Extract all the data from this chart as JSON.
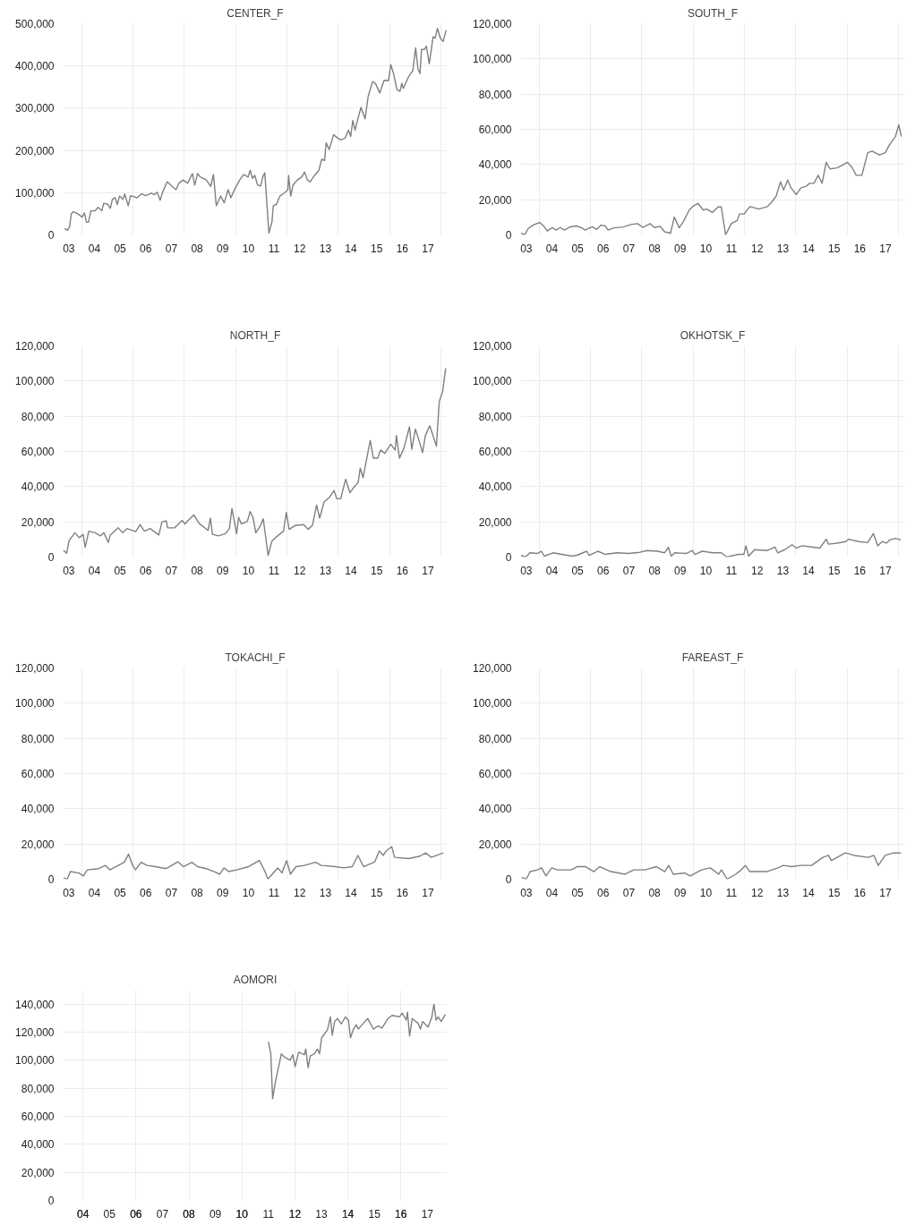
{
  "chart_data": [
    {
      "type": "line",
      "title": "CENTER_F",
      "xlim": [
        2.78,
        17.75
      ],
      "ylim": [
        0,
        500000
      ],
      "grid": true,
      "xticks": [
        {
          "value": 3,
          "label": "03"
        },
        {
          "value": 4,
          "label": "04"
        },
        {
          "value": 5,
          "label": "05"
        },
        {
          "value": 6,
          "label": "06"
        },
        {
          "value": 7,
          "label": "07"
        },
        {
          "value": 8,
          "label": "08"
        },
        {
          "value": 9,
          "label": "09"
        },
        10,
        11,
        12,
        13,
        14,
        15,
        16,
        17,
        {
          "value": 3.5,
          "label": null
        },
        {
          "value": 5.5,
          "label": null
        },
        {
          "value": 7.5,
          "label": null
        },
        {
          "value": 9.5,
          "label": null
        },
        {
          "value": 11.5,
          "label": null
        },
        {
          "value": 13.5,
          "label": null
        },
        {
          "value": 15.5,
          "label": null
        },
        {
          "value": 17.5,
          "label": null
        }
      ],
      "yticks": [
        {
          "value": 0,
          "label": "0"
        },
        {
          "value": 100000,
          "label": "100,000"
        },
        {
          "value": 200000,
          "label": "200,000"
        },
        {
          "value": 300000,
          "label": "300,000"
        },
        {
          "value": 400000,
          "label": "400,000"
        },
        {
          "value": 500000,
          "label": "500,000"
        }
      ],
      "series": [
        {
          "color": "#808080",
          "x": [
            2.84,
            2.95,
            3.03,
            3.1,
            3.18,
            3.35,
            3.52,
            3.61,
            3.69,
            3.77,
            3.86,
            4.03,
            4.14,
            4.29,
            4.36,
            4.53,
            4.62,
            4.7,
            4.81,
            4.89,
            4.98,
            5.11,
            5.18,
            5.32,
            5.41,
            5.66,
            5.83,
            6.0,
            6.22,
            6.33,
            6.45,
            6.56,
            6.67,
            6.84,
            7.01,
            7.18,
            7.29,
            7.46,
            7.63,
            7.82,
            7.91,
            8.02,
            8.13,
            8.36,
            8.53,
            8.64,
            8.75,
            8.92,
            9.06,
            9.21,
            9.32,
            9.49,
            9.66,
            9.82,
            9.99,
            10.07,
            10.16,
            10.25,
            10.36,
            10.48,
            10.56,
            10.64,
            10.8,
            10.92,
            10.97,
            11.09,
            11.23,
            11.4,
            11.54,
            11.57,
            11.65,
            11.74,
            11.91,
            12.08,
            12.19,
            12.3,
            12.41,
            12.58,
            12.75,
            12.86,
            12.97,
            13.03,
            13.15,
            13.32,
            13.49,
            13.6,
            13.77,
            13.9,
            13.99,
            14.07,
            14.16,
            14.27,
            14.39,
            14.55,
            14.67,
            14.84,
            14.95,
            15.12,
            15.29,
            15.46,
            15.55,
            15.66,
            15.79,
            15.91,
            15.98,
            16.04,
            16.24,
            16.41,
            16.52,
            16.61,
            16.69,
            16.75,
            16.86,
            16.94,
            17.05,
            17.2,
            17.28,
            17.37,
            17.48,
            17.59,
            17.71
          ],
          "values": [
            15000,
            11000,
            19000,
            50000,
            55000,
            50000,
            42000,
            52000,
            30000,
            30000,
            57000,
            57000,
            65000,
            57000,
            75000,
            72000,
            63000,
            84000,
            88000,
            72000,
            92000,
            84000,
            97000,
            69000,
            93000,
            88000,
            97000,
            93000,
            99000,
            95000,
            101000,
            82000,
            103000,
            126000,
            116000,
            107000,
            122000,
            130000,
            122000,
            145000,
            118000,
            145000,
            137000,
            130000,
            115000,
            143000,
            69000,
            92000,
            76000,
            107000,
            88000,
            111000,
            130000,
            143000,
            137000,
            153000,
            134000,
            141000,
            118000,
            116000,
            137000,
            147000,
            4000,
            31000,
            69000,
            72000,
            92000,
            99000,
            107000,
            141000,
            92000,
            118000,
            130000,
            137000,
            149000,
            130000,
            126000,
            141000,
            153000,
            179000,
            176000,
            218000,
            202000,
            237000,
            229000,
            225000,
            229000,
            248000,
            233000,
            271000,
            248000,
            275000,
            302000,
            275000,
            328000,
            363000,
            359000,
            336000,
            366000,
            365000,
            403000,
            382000,
            344000,
            340000,
            359000,
            347000,
            374000,
            389000,
            443000,
            393000,
            382000,
            439000,
            439000,
            447000,
            405000,
            469000,
            466000,
            489000,
            466000,
            458000,
            485000
          ]
        }
      ]
    },
    {
      "type": "line",
      "title": "SOUTH_F",
      "xlim": [
        2.78,
        17.75
      ],
      "ylim": [
        0,
        120000
      ],
      "grid": true,
      "xticks": [
        {
          "value": 3,
          "label": "03"
        },
        {
          "value": 4,
          "label": "04"
        },
        {
          "value": 5,
          "label": "05"
        },
        {
          "value": 6,
          "label": "06"
        },
        {
          "value": 7,
          "label": "07"
        },
        {
          "value": 8,
          "label": "08"
        },
        {
          "value": 9,
          "label": "09"
        },
        10,
        11,
        12,
        13,
        14,
        15,
        16,
        17,
        {
          "value": 3.5,
          "label": null
        },
        {
          "value": 5.5,
          "label": null
        },
        {
          "value": 7.5,
          "label": null
        },
        {
          "value": 9.5,
          "label": null
        },
        {
          "value": 11.5,
          "label": null
        },
        {
          "value": 13.5,
          "label": null
        },
        {
          "value": 15.5,
          "label": null
        },
        {
          "value": 17.5,
          "label": null
        }
      ],
      "yticks": [
        {
          "value": 0,
          "label": "0"
        },
        {
          "value": 20000,
          "label": "20,000"
        },
        {
          "value": 40000,
          "label": "40,000"
        },
        {
          "value": 60000,
          "label": "60,000"
        },
        {
          "value": 80000,
          "label": "80,000"
        },
        {
          "value": 100000,
          "label": "100,000"
        },
        {
          "value": 120000,
          "label": "120,000"
        }
      ],
      "series": [
        {
          "color": "#808080",
          "x": [
            2.8,
            2.94,
            3.08,
            3.31,
            3.53,
            3.65,
            3.82,
            4.02,
            4.16,
            4.32,
            4.49,
            4.72,
            4.95,
            5.17,
            5.29,
            5.57,
            5.74,
            5.91,
            6.08,
            6.19,
            6.42,
            6.75,
            7.09,
            7.34,
            7.55,
            7.83,
            8.0,
            8.22,
            8.39,
            8.62,
            8.77,
            8.96,
            9.13,
            9.35,
            9.52,
            9.69,
            9.9,
            10.03,
            10.26,
            10.48,
            10.6,
            10.77,
            10.99,
            11.22,
            11.31,
            11.5,
            11.61,
            11.73,
            12.06,
            12.4,
            12.57,
            12.74,
            12.91,
            13.03,
            13.19,
            13.31,
            13.53,
            13.7,
            13.93,
            14.04,
            14.21,
            14.38,
            14.53,
            14.69,
            14.84,
            15.12,
            15.52,
            15.69,
            15.86,
            16.08,
            16.31,
            16.48,
            16.76,
            16.99,
            17.16,
            17.39,
            17.52,
            17.62
          ],
          "values": [
            900,
            0,
            3700,
            5900,
            7000,
            5500,
            2200,
            4200,
            2700,
            4200,
            2700,
            4600,
            5100,
            4000,
            2700,
            4600,
            3100,
            5500,
            5100,
            2700,
            4000,
            4400,
            5900,
            6400,
            4200,
            6400,
            4200,
            4900,
            1800,
            900,
            10100,
            4000,
            7700,
            14100,
            16500,
            17900,
            14100,
            14700,
            12800,
            15900,
            15900,
            0,
            6400,
            8200,
            11900,
            11900,
            14300,
            16100,
            14700,
            16100,
            18700,
            22000,
            30200,
            25600,
            31100,
            26900,
            22900,
            26600,
            27800,
            29300,
            29300,
            33900,
            29300,
            41200,
            37500,
            38100,
            41200,
            38500,
            33900,
            33900,
            46700,
            47600,
            45400,
            46700,
            51300,
            55900,
            62600,
            55900
          ]
        }
      ]
    },
    {
      "type": "line",
      "title": "NORTH_F",
      "xlim": [
        2.78,
        17.75
      ],
      "ylim": [
        0,
        120000
      ],
      "grid": true,
      "xticks": [
        {
          "value": 3,
          "label": "03"
        },
        {
          "value": 4,
          "label": "04"
        },
        {
          "value": 5,
          "label": "05"
        },
        {
          "value": 6,
          "label": "06"
        },
        {
          "value": 7,
          "label": "07"
        },
        {
          "value": 8,
          "label": "08"
        },
        {
          "value": 9,
          "label": "09"
        },
        10,
        11,
        12,
        13,
        14,
        15,
        16,
        17,
        {
          "value": 3.5,
          "label": null
        },
        {
          "value": 5.5,
          "label": null
        },
        {
          "value": 7.5,
          "label": null
        },
        {
          "value": 9.5,
          "label": null
        },
        {
          "value": 11.5,
          "label": null
        },
        {
          "value": 13.5,
          "label": null
        },
        {
          "value": 15.5,
          "label": null
        },
        {
          "value": 17.5,
          "label": null
        }
      ],
      "yticks": [
        {
          "value": 0,
          "label": "0"
        },
        {
          "value": 20000,
          "label": "20,000"
        },
        {
          "value": 40000,
          "label": "40,000"
        },
        {
          "value": 60000,
          "label": "60,000"
        },
        {
          "value": 80000,
          "label": "80,000"
        },
        {
          "value": 100000,
          "label": "100,000"
        },
        {
          "value": 120000,
          "label": "120,000"
        }
      ],
      "series": [
        {
          "color": "#808080",
          "x": [
            2.79,
            2.92,
            3.01,
            3.24,
            3.41,
            3.56,
            3.64,
            3.78,
            4.03,
            4.23,
            4.37,
            4.54,
            4.62,
            4.93,
            5.1,
            5.27,
            5.61,
            5.78,
            5.95,
            6.17,
            6.51,
            6.63,
            6.8,
            6.85,
            7.13,
            7.42,
            7.53,
            7.64,
            7.87,
            8.09,
            8.43,
            8.52,
            8.6,
            8.83,
            9.11,
            9.26,
            9.36,
            9.54,
            9.62,
            9.73,
            9.96,
            10.07,
            10.18,
            10.29,
            10.46,
            10.58,
            10.77,
            10.92,
            11.14,
            11.37,
            11.48,
            11.59,
            11.82,
            12.16,
            12.33,
            12.5,
            12.66,
            12.78,
            12.95,
            13.17,
            13.34,
            13.45,
            13.6,
            13.79,
            13.96,
            14.08,
            14.28,
            14.36,
            14.47,
            14.75,
            14.87,
            15.04,
            15.15,
            15.32,
            15.55,
            15.72,
            15.77,
            15.89,
            16.06,
            16.28,
            16.37,
            16.51,
            16.67,
            16.79,
            16.9,
            17.07,
            17.33,
            17.44,
            17.57,
            17.69
          ],
          "values": [
            3700,
            2200,
            9200,
            13800,
            11000,
            12900,
            5500,
            14700,
            13800,
            12000,
            13800,
            8300,
            12500,
            16600,
            13800,
            16200,
            14400,
            18400,
            14700,
            16200,
            12500,
            19900,
            20600,
            16600,
            16600,
            20800,
            18800,
            20600,
            23900,
            19000,
            15100,
            22100,
            12900,
            12000,
            13300,
            16200,
            27600,
            13300,
            22500,
            18800,
            20300,
            25800,
            22500,
            13800,
            17500,
            21700,
            900,
            9200,
            12000,
            14700,
            25400,
            15700,
            17900,
            18400,
            15700,
            18100,
            29500,
            22100,
            31300,
            34100,
            37800,
            33100,
            33100,
            44200,
            36500,
            39000,
            42400,
            50600,
            45100,
            66300,
            56200,
            56200,
            60800,
            58900,
            64100,
            60800,
            69100,
            56200,
            61700,
            74000,
            61200,
            72700,
            65400,
            59300,
            69100,
            74600,
            63000,
            88400,
            93900,
            107200
          ]
        }
      ]
    },
    {
      "type": "line",
      "title": "OKHOTSK_F",
      "xlim": [
        2.78,
        17.75
      ],
      "ylim": [
        0,
        120000
      ],
      "grid": true,
      "xticks": [
        {
          "value": 3,
          "label": "03"
        },
        {
          "value": 4,
          "label": "04"
        },
        {
          "value": 5,
          "label": "05"
        },
        {
          "value": 6,
          "label": "06"
        },
        {
          "value": 7,
          "label": "07"
        },
        {
          "value": 8,
          "label": "08"
        },
        {
          "value": 9,
          "label": "09"
        },
        10,
        11,
        12,
        13,
        14,
        15,
        16,
        17,
        {
          "value": 3.5,
          "label": null
        },
        {
          "value": 5.5,
          "label": null
        },
        {
          "value": 7.5,
          "label": null
        },
        {
          "value": 9.5,
          "label": null
        },
        {
          "value": 11.5,
          "label": null
        },
        {
          "value": 13.5,
          "label": null
        },
        {
          "value": 15.5,
          "label": null
        },
        {
          "value": 17.5,
          "label": null
        }
      ],
      "yticks": [
        {
          "value": 0,
          "label": "0"
        },
        {
          "value": 20000,
          "label": "20,000"
        },
        {
          "value": 40000,
          "label": "40,000"
        },
        {
          "value": 60000,
          "label": "60,000"
        },
        {
          "value": 80000,
          "label": "80,000"
        },
        {
          "value": 100000,
          "label": "100,000"
        },
        {
          "value": 120000,
          "label": "120,000"
        }
      ],
      "series": [
        {
          "color": "#808080",
          "x": [
            2.8,
            2.97,
            3.14,
            3.42,
            3.59,
            3.7,
            4.04,
            4.38,
            4.78,
            4.95,
            5.36,
            5.45,
            5.79,
            6.08,
            6.53,
            6.98,
            7.43,
            7.71,
            8.11,
            8.39,
            8.54,
            8.65,
            8.79,
            9.24,
            9.47,
            9.58,
            9.86,
            10.26,
            10.6,
            10.82,
            11.27,
            11.48,
            11.56,
            11.67,
            11.9,
            12.4,
            12.69,
            12.8,
            13.08,
            13.36,
            13.53,
            13.76,
            14.1,
            14.44,
            14.69,
            14.78,
            15.12,
            15.45,
            15.57,
            15.96,
            16.3,
            16.45,
            16.53,
            16.7,
            16.87,
            17.04,
            17.16,
            17.39,
            17.6
          ],
          "values": [
            900,
            0,
            2400,
            2000,
            3300,
            500,
            2400,
            1500,
            500,
            900,
            3300,
            900,
            3300,
            1500,
            2400,
            2000,
            2700,
            3700,
            3300,
            2400,
            5500,
            500,
            2400,
            2000,
            3700,
            1500,
            3300,
            2400,
            2400,
            0,
            1500,
            1500,
            6400,
            500,
            4200,
            3700,
            5700,
            2400,
            4200,
            7000,
            5100,
            6400,
            5700,
            5100,
            10100,
            7300,
            7900,
            8800,
            10100,
            8800,
            8200,
            11500,
            13400,
            6400,
            8800,
            7900,
            9700,
            10600,
            9700
          ]
        }
      ]
    },
    {
      "type": "line",
      "title": "TOKACHI_F",
      "xlim": [
        2.78,
        17.75
      ],
      "ylim": [
        0,
        120000
      ],
      "grid": true,
      "xticks": [
        {
          "value": 3,
          "label": "03"
        },
        {
          "value": 4,
          "label": "04"
        },
        {
          "value": 5,
          "label": "05"
        },
        {
          "value": 6,
          "label": "06"
        },
        {
          "value": 7,
          "label": "07"
        },
        {
          "value": 8,
          "label": "08"
        },
        {
          "value": 9,
          "label": "09"
        },
        10,
        11,
        12,
        13,
        14,
        15,
        16,
        17,
        {
          "value": 3.5,
          "label": null
        },
        {
          "value": 5.5,
          "label": null
        },
        {
          "value": 7.5,
          "label": null
        },
        {
          "value": 9.5,
          "label": null
        },
        {
          "value": 11.5,
          "label": null
        },
        {
          "value": 13.5,
          "label": null
        },
        {
          "value": 15.5,
          "label": null
        },
        {
          "value": 17.5,
          "label": null
        }
      ],
      "yticks": [
        {
          "value": 0,
          "label": "0"
        },
        {
          "value": 20000,
          "label": "20,000"
        },
        {
          "value": 40000,
          "label": "40,000"
        },
        {
          "value": 60000,
          "label": "60,000"
        },
        {
          "value": 80000,
          "label": "80,000"
        },
        {
          "value": 100000,
          "label": "100,000"
        },
        {
          "value": 120000,
          "label": "120,000"
        }
      ],
      "series": [
        {
          "color": "#808080",
          "x": [
            2.8,
            2.94,
            3.06,
            3.39,
            3.57,
            3.72,
            4.17,
            4.43,
            4.6,
            4.93,
            5.16,
            5.33,
            5.49,
            5.6,
            5.82,
            6.05,
            6.37,
            6.8,
            7.25,
            7.47,
            7.8,
            8.02,
            8.35,
            8.67,
            8.89,
            9.05,
            9.23,
            9.55,
            10.0,
            10.43,
            10.65,
            10.76,
            11.02,
            11.15,
            11.31,
            11.49,
            11.64,
            11.86,
            12.19,
            12.62,
            12.84,
            13.39,
            13.72,
            14.05,
            14.27,
            14.49,
            14.93,
            15.1,
            15.26,
            15.37,
            15.59,
            15.7,
            16.25,
            16.69,
            16.91,
            17.13,
            17.6
          ],
          "values": [
            700,
            0,
            4300,
            3500,
            1800,
            5300,
            6000,
            7800,
            5300,
            7800,
            9600,
            14200,
            7800,
            5300,
            9600,
            7800,
            7100,
            6000,
            9900,
            7100,
            9600,
            7100,
            6000,
            4300,
            2800,
            6400,
            4300,
            5300,
            7100,
            10600,
            4300,
            0,
            4300,
            6400,
            3500,
            10600,
            2800,
            7100,
            7800,
            9600,
            7800,
            7100,
            6400,
            7100,
            13500,
            7100,
            9900,
            16000,
            13500,
            16000,
            18400,
            12400,
            11700,
            13100,
            14900,
            12400,
            14900
          ]
        }
      ]
    },
    {
      "type": "line",
      "title": "FAREAST_F",
      "xlim": [
        2.78,
        17.75
      ],
      "ylim": [
        0,
        120000
      ],
      "grid": true,
      "xticks": [
        {
          "value": 3,
          "label": "03"
        },
        {
          "value": 4,
          "label": "04"
        },
        {
          "value": 5,
          "label": "05"
        },
        {
          "value": 6,
          "label": "06"
        },
        {
          "value": 7,
          "label": "07"
        },
        {
          "value": 8,
          "label": "08"
        },
        {
          "value": 9,
          "label": "09"
        },
        10,
        11,
        12,
        13,
        14,
        15,
        16,
        17,
        {
          "value": 3.5,
          "label": null
        },
        {
          "value": 5.5,
          "label": null
        },
        {
          "value": 7.5,
          "label": null
        },
        {
          "value": 9.5,
          "label": null
        },
        {
          "value": 11.5,
          "label": null
        },
        {
          "value": 13.5,
          "label": null
        },
        {
          "value": 15.5,
          "label": null
        },
        {
          "value": 17.5,
          "label": null
        }
      ],
      "yticks": [
        {
          "value": 0,
          "label": "0"
        },
        {
          "value": 20000,
          "label": "20,000"
        },
        {
          "value": 40000,
          "label": "40,000"
        },
        {
          "value": 60000,
          "label": "60,000"
        },
        {
          "value": 80000,
          "label": "80,000"
        },
        {
          "value": 100000,
          "label": "100,000"
        },
        {
          "value": 120000,
          "label": "120,000"
        }
      ],
      "series": [
        {
          "color": "#808080",
          "x": [
            2.82,
            3.0,
            3.15,
            3.44,
            3.59,
            3.77,
            3.99,
            4.21,
            4.76,
            4.98,
            5.31,
            5.64,
            5.86,
            6.3,
            6.85,
            7.19,
            7.63,
            8.07,
            8.4,
            8.55,
            8.73,
            9.17,
            9.39,
            9.83,
            10.17,
            10.5,
            10.61,
            10.83,
            11.16,
            11.38,
            11.54,
            11.71,
            12.37,
            12.81,
            13.02,
            13.35,
            13.68,
            14.12,
            14.56,
            14.78,
            14.89,
            15.44,
            15.78,
            16.33,
            16.55,
            16.72,
            16.99,
            17.32,
            17.6
          ],
          "values": [
            1000,
            0,
            4300,
            5300,
            6400,
            1800,
            6400,
            5300,
            5300,
            7100,
            7100,
            4300,
            7100,
            4300,
            2800,
            5300,
            5300,
            7100,
            4300,
            7800,
            2800,
            3500,
            1800,
            5300,
            6400,
            2800,
            5300,
            0,
            2800,
            5300,
            7800,
            4300,
            4300,
            6400,
            7800,
            7100,
            7800,
            7800,
            12400,
            13500,
            10600,
            14900,
            13500,
            12400,
            13500,
            7800,
            13500,
            14900,
            14900
          ]
        }
      ]
    },
    {
      "type": "line",
      "title": "AOMORI",
      "xlim": [
        3.25,
        17.75
      ],
      "ylim": [
        0,
        150000
      ],
      "grid": true,
      "xticks": [
        {
          "value": 4,
          "label": "04"
        },
        {
          "value": 5,
          "label": "05"
        },
        {
          "value": 6,
          "label": "06"
        },
        {
          "value": 7,
          "label": "07"
        },
        {
          "value": 8,
          "label": "08"
        },
        {
          "value": 9,
          "label": "09"
        },
        10,
        11,
        12,
        13,
        14,
        15,
        16,
        17,
        {
          "value": 4,
          "label": null
        },
        {
          "value": 6,
          "label": null
        },
        {
          "value": 8,
          "label": null
        },
        {
          "value": 10,
          "label": null
        },
        {
          "value": 12,
          "label": null
        },
        {
          "value": 14,
          "label": null
        },
        {
          "value": 16,
          "label": null
        }
      ],
      "yticks": [
        {
          "value": 0,
          "label": "0"
        },
        {
          "value": 20000,
          "label": "20,000"
        },
        {
          "value": 40000,
          "label": "40,000"
        },
        {
          "value": 60000,
          "label": "60,000"
        },
        {
          "value": 80000,
          "label": "80,000"
        },
        {
          "value": 100000,
          "label": "100,000"
        },
        {
          "value": 120000,
          "label": "120,000"
        },
        {
          "value": 140000,
          "label": "140,000"
        }
      ],
      "series": [
        {
          "color": "#808080",
          "x": [
            11.0,
            11.09,
            11.16,
            11.27,
            11.49,
            11.6,
            11.82,
            11.92,
            12.01,
            12.14,
            12.36,
            12.41,
            12.5,
            12.58,
            12.74,
            12.85,
            12.93,
            13.01,
            13.23,
            13.34,
            13.41,
            13.5,
            13.61,
            13.75,
            13.91,
            14.02,
            14.1,
            14.21,
            14.32,
            14.39,
            14.53,
            14.75,
            14.97,
            15.13,
            15.29,
            15.51,
            15.67,
            15.95,
            16.05,
            16.2,
            16.25,
            16.33,
            16.43,
            16.65,
            16.74,
            16.82,
            17.03,
            17.17,
            17.25,
            17.33,
            17.41,
            17.52,
            17.68
          ],
          "values": [
            113000,
            104600,
            72500,
            85100,
            104600,
            102300,
            100000,
            103900,
            95400,
            105700,
            103900,
            108000,
            94700,
            103000,
            104600,
            108000,
            104600,
            116000,
            121700,
            130900,
            117800,
            127600,
            129700,
            125900,
            130900,
            128600,
            116000,
            122200,
            125200,
            122200,
            125200,
            129700,
            122200,
            124500,
            122900,
            129700,
            132000,
            130900,
            133600,
            128600,
            134300,
            117200,
            129700,
            126300,
            122200,
            127600,
            123600,
            130900,
            140000,
            128600,
            130900,
            127600,
            132700
          ]
        }
      ]
    }
  ]
}
